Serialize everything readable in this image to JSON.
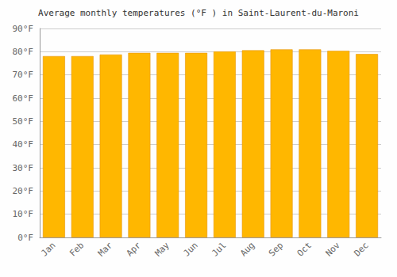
{
  "chart_data": {
    "type": "bar",
    "title": "Average monthly temperatures (°F ) in Saint-Laurent-du-Maroni",
    "categories": [
      "Jan",
      "Feb",
      "Mar",
      "Apr",
      "May",
      "Jun",
      "Jul",
      "Aug",
      "Sep",
      "Oct",
      "Nov",
      "Dec"
    ],
    "values": [
      78.1,
      78.1,
      78.8,
      79.5,
      79.5,
      79.5,
      80.1,
      80.6,
      81.0,
      81.0,
      80.4,
      79.0
    ],
    "color": "#FFB700",
    "ylim": [
      0,
      90
    ],
    "yticks": [
      {
        "value": 0,
        "label": "0°F"
      },
      {
        "value": 10,
        "label": "10°F"
      },
      {
        "value": 20,
        "label": "20°F"
      },
      {
        "value": 30,
        "label": "30°F"
      },
      {
        "value": 40,
        "label": "40°F"
      },
      {
        "value": 50,
        "label": "50°F"
      },
      {
        "value": 60,
        "label": "60°F"
      },
      {
        "value": 70,
        "label": "70°F"
      },
      {
        "value": 80,
        "label": "80°F"
      },
      {
        "value": 90,
        "label": "90°F"
      }
    ],
    "grid": true
  }
}
